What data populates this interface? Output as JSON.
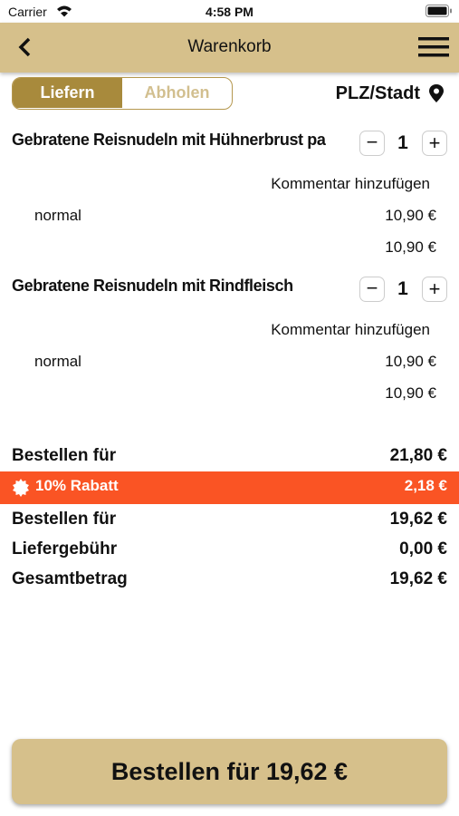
{
  "status_bar": {
    "carrier": "Carrier",
    "time": "4:58 PM"
  },
  "header": {
    "title": "Warenkorb"
  },
  "delivery_toggle": {
    "options": [
      "Liefern",
      "Abholen"
    ],
    "selected": "Liefern"
  },
  "location": "PLZ/Stadt",
  "items": [
    {
      "name": "Gebratene Reisnudeln mit Hühnerbrust pa",
      "quantity": "1",
      "comment_link": "Kommentar hinzufügen",
      "variant": "normal",
      "variant_price": "10,90 €",
      "item_total": "10,90 €"
    },
    {
      "name": "Gebratene Reisnudeln mit Rindfleisch",
      "quantity": "1",
      "comment_link": "Kommentar hinzufügen",
      "variant": "normal",
      "variant_price": "10,90 €",
      "item_total": "10,90 €"
    }
  ],
  "summary": [
    {
      "label": "Bestellen für",
      "amount": "21,80 €"
    },
    {
      "label": "10% Rabatt",
      "amount": "2,18 €"
    },
    {
      "label": "Bestellen für",
      "amount": "19,62 €"
    },
    {
      "label": "Liefergebühr",
      "amount": "0,00 €"
    },
    {
      "label": "Gesamtbetrag",
      "amount": "19,62 €"
    }
  ],
  "order_button": "Bestellen für 19,62 €"
}
